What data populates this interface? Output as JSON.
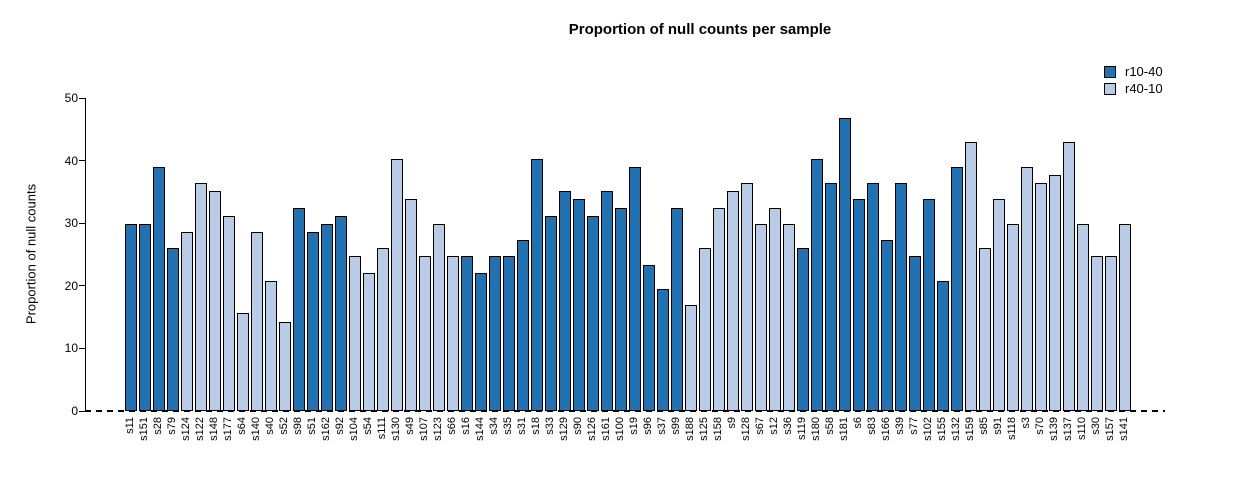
{
  "chart_data": {
    "type": "bar",
    "title": "Proportion of null counts per sample",
    "xlabel": "",
    "ylabel": "Proportion of null counts",
    "ylim": [
      0,
      50
    ],
    "yticks": [
      0,
      10,
      20,
      30,
      40,
      50
    ],
    "grid": false,
    "legend_position": "top-right",
    "zero_line_style": "dashed",
    "legend": [
      {
        "label": "r10-40",
        "color": "#2172b2"
      },
      {
        "label": "r40-10",
        "color": "#b8cce8"
      }
    ],
    "bars": [
      {
        "label": "s11",
        "value": 29.9,
        "group": "r10-40"
      },
      {
        "label": "s151",
        "value": 29.9,
        "group": "r10-40"
      },
      {
        "label": "s28",
        "value": 39.0,
        "group": "r10-40"
      },
      {
        "label": "s79",
        "value": 26.0,
        "group": "r10-40"
      },
      {
        "label": "s124",
        "value": 28.6,
        "group": "r40-10"
      },
      {
        "label": "s122",
        "value": 36.4,
        "group": "r40-10"
      },
      {
        "label": "s148",
        "value": 35.1,
        "group": "r40-10"
      },
      {
        "label": "s177",
        "value": 31.2,
        "group": "r40-10"
      },
      {
        "label": "s64",
        "value": 15.6,
        "group": "r40-10"
      },
      {
        "label": "s140",
        "value": 28.6,
        "group": "r40-10"
      },
      {
        "label": "s40",
        "value": 20.8,
        "group": "r40-10"
      },
      {
        "label": "s52",
        "value": 14.3,
        "group": "r40-10"
      },
      {
        "label": "s98",
        "value": 32.5,
        "group": "r10-40"
      },
      {
        "label": "s51",
        "value": 28.6,
        "group": "r10-40"
      },
      {
        "label": "s162",
        "value": 29.9,
        "group": "r10-40"
      },
      {
        "label": "s92",
        "value": 31.2,
        "group": "r10-40"
      },
      {
        "label": "s104",
        "value": 24.7,
        "group": "r40-10"
      },
      {
        "label": "s54",
        "value": 22.1,
        "group": "r40-10"
      },
      {
        "label": "s111",
        "value": 26.0,
        "group": "r40-10"
      },
      {
        "label": "s130",
        "value": 40.3,
        "group": "r40-10"
      },
      {
        "label": "s49",
        "value": 33.8,
        "group": "r40-10"
      },
      {
        "label": "s107",
        "value": 24.7,
        "group": "r40-10"
      },
      {
        "label": "s123",
        "value": 29.9,
        "group": "r40-10"
      },
      {
        "label": "s66",
        "value": 24.7,
        "group": "r40-10"
      },
      {
        "label": "s16",
        "value": 24.7,
        "group": "r10-40"
      },
      {
        "label": "s144",
        "value": 22.1,
        "group": "r10-40"
      },
      {
        "label": "s34",
        "value": 24.7,
        "group": "r10-40"
      },
      {
        "label": "s35",
        "value": 24.7,
        "group": "r10-40"
      },
      {
        "label": "s31",
        "value": 27.3,
        "group": "r10-40"
      },
      {
        "label": "s18",
        "value": 40.3,
        "group": "r10-40"
      },
      {
        "label": "s33",
        "value": 31.2,
        "group": "r10-40"
      },
      {
        "label": "s129",
        "value": 35.1,
        "group": "r10-40"
      },
      {
        "label": "s90",
        "value": 33.8,
        "group": "r10-40"
      },
      {
        "label": "s126",
        "value": 31.2,
        "group": "r10-40"
      },
      {
        "label": "s161",
        "value": 35.1,
        "group": "r10-40"
      },
      {
        "label": "s100",
        "value": 32.5,
        "group": "r10-40"
      },
      {
        "label": "s19",
        "value": 39.0,
        "group": "r10-40"
      },
      {
        "label": "s96",
        "value": 23.4,
        "group": "r10-40"
      },
      {
        "label": "s37",
        "value": 19.5,
        "group": "r10-40"
      },
      {
        "label": "s99",
        "value": 32.5,
        "group": "r10-40"
      },
      {
        "label": "s188",
        "value": 16.9,
        "group": "r40-10"
      },
      {
        "label": "s125",
        "value": 26.0,
        "group": "r40-10"
      },
      {
        "label": "s158",
        "value": 32.5,
        "group": "r40-10"
      },
      {
        "label": "s9",
        "value": 35.1,
        "group": "r40-10"
      },
      {
        "label": "s128",
        "value": 36.4,
        "group": "r40-10"
      },
      {
        "label": "s67",
        "value": 29.9,
        "group": "r40-10"
      },
      {
        "label": "s12",
        "value": 32.5,
        "group": "r40-10"
      },
      {
        "label": "s36",
        "value": 29.9,
        "group": "r40-10"
      },
      {
        "label": "s119",
        "value": 26.0,
        "group": "r10-40"
      },
      {
        "label": "s180",
        "value": 40.3,
        "group": "r10-40"
      },
      {
        "label": "s58",
        "value": 36.4,
        "group": "r10-40"
      },
      {
        "label": "s181",
        "value": 46.8,
        "group": "r10-40"
      },
      {
        "label": "s6",
        "value": 33.8,
        "group": "r10-40"
      },
      {
        "label": "s83",
        "value": 36.4,
        "group": "r10-40"
      },
      {
        "label": "s166",
        "value": 27.3,
        "group": "r10-40"
      },
      {
        "label": "s39",
        "value": 36.4,
        "group": "r10-40"
      },
      {
        "label": "s77",
        "value": 24.7,
        "group": "r10-40"
      },
      {
        "label": "s102",
        "value": 33.8,
        "group": "r10-40"
      },
      {
        "label": "s155",
        "value": 20.8,
        "group": "r10-40"
      },
      {
        "label": "s132",
        "value": 39.0,
        "group": "r10-40"
      },
      {
        "label": "s159",
        "value": 42.9,
        "group": "r40-10"
      },
      {
        "label": "s85",
        "value": 26.0,
        "group": "r40-10"
      },
      {
        "label": "s91",
        "value": 33.8,
        "group": "r40-10"
      },
      {
        "label": "s118",
        "value": 29.9,
        "group": "r40-10"
      },
      {
        "label": "s3",
        "value": 39.0,
        "group": "r40-10"
      },
      {
        "label": "s70",
        "value": 36.4,
        "group": "r40-10"
      },
      {
        "label": "s139",
        "value": 37.7,
        "group": "r40-10"
      },
      {
        "label": "s137",
        "value": 42.9,
        "group": "r40-10"
      },
      {
        "label": "s110",
        "value": 29.9,
        "group": "r40-10"
      },
      {
        "label": "s30",
        "value": 24.7,
        "group": "r40-10"
      },
      {
        "label": "s157",
        "value": 24.7,
        "group": "r40-10"
      },
      {
        "label": "s141",
        "value": 29.9,
        "group": "r40-10"
      }
    ]
  }
}
